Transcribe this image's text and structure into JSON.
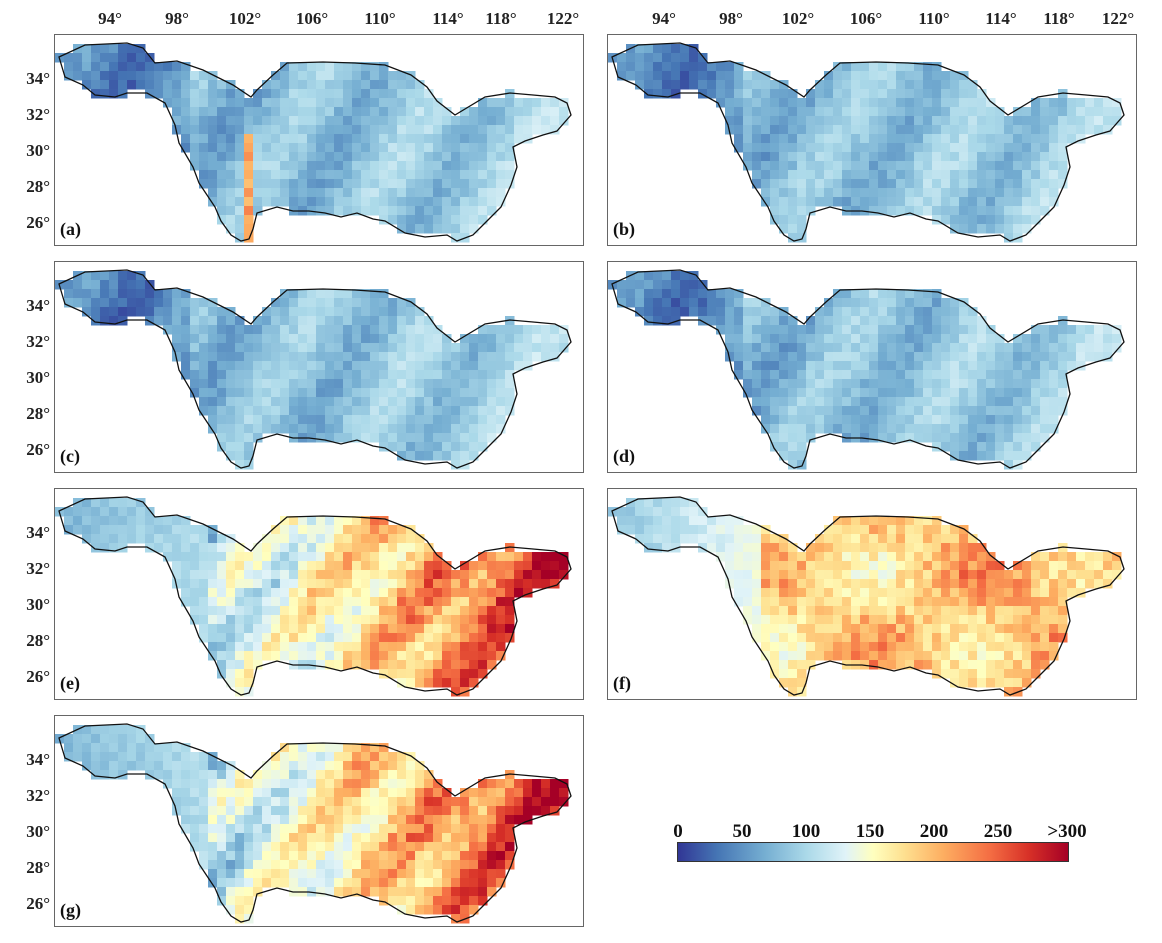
{
  "lon_ticks": [
    "94°",
    "98°",
    "102°",
    "106°",
    "110°",
    "114°",
    "118°",
    "122°"
  ],
  "lat_ticks": [
    "34°",
    "32°",
    "30°",
    "28°",
    "26°"
  ],
  "panels": [
    {
      "id": "a",
      "label": "(a)",
      "level": "low",
      "hotspot_column": true
    },
    {
      "id": "b",
      "label": "(b)",
      "level": "low"
    },
    {
      "id": "c",
      "label": "(c)",
      "level": "low"
    },
    {
      "id": "d",
      "label": "(d)",
      "level": "low"
    },
    {
      "id": "e",
      "label": "(e)",
      "level": "high-east"
    },
    {
      "id": "f",
      "label": "(f)",
      "level": "medium"
    },
    {
      "id": "g",
      "label": "(g)",
      "level": "high-east"
    }
  ],
  "colorbar": {
    "ticks": [
      "0",
      "50",
      "100",
      "150",
      "200",
      "250",
      ">300"
    ],
    "min": 0,
    "max": 300,
    "colors": [
      "#313695",
      "#4575b4",
      "#74add1",
      "#abd9e9",
      "#e0f3f8",
      "#ffffbf",
      "#fee090",
      "#fdae61",
      "#f46d43",
      "#d73027",
      "#a50026"
    ]
  }
}
